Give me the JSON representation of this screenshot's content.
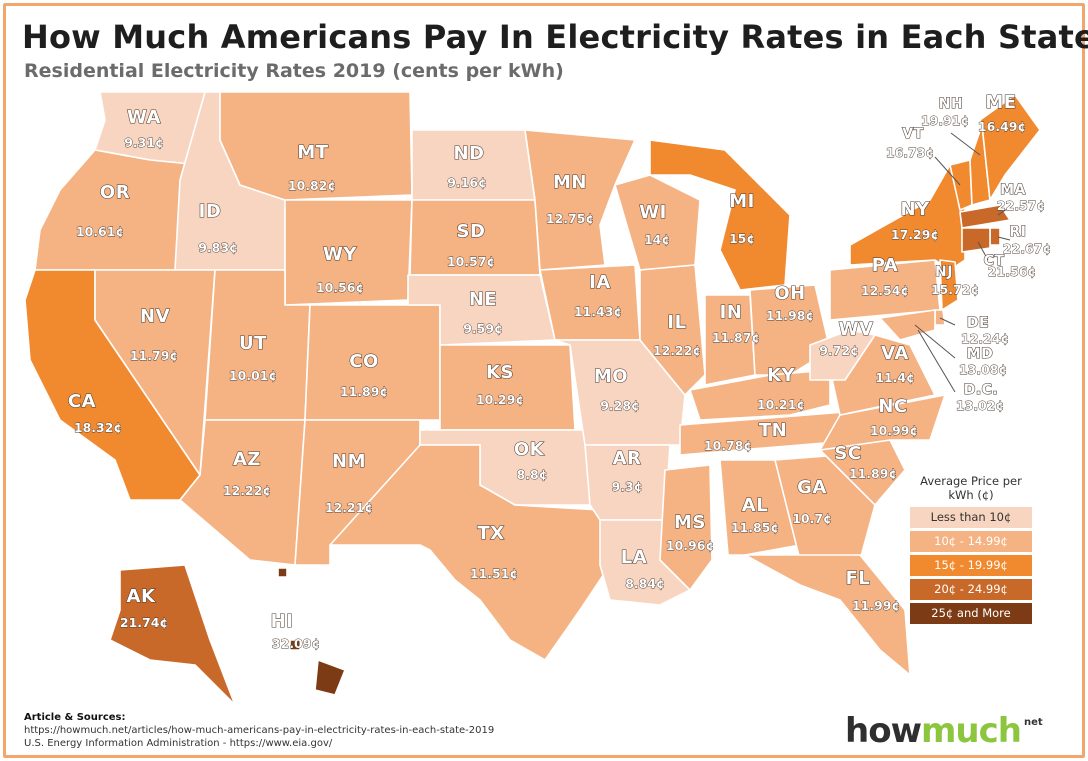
{
  "header": {
    "title": "How Much Americans Pay In Electricity Rates in Each State",
    "subtitle": "Residential Electricity Rates 2019 (cents per kWh)"
  },
  "legend": {
    "title": "Average Price per kWh (¢)",
    "items": [
      {
        "label": "Less than 10¢",
        "color": "#f8d5c0",
        "text_color": "#333333"
      },
      {
        "label": "10¢ - 14.99¢",
        "color": "#f5b283",
        "text_color": "#ffffff"
      },
      {
        "label": "15¢ - 19.99¢",
        "color": "#f1892f",
        "text_color": "#ffffff"
      },
      {
        "label": "20¢ - 24.99¢",
        "color": "#c8692a",
        "text_color": "#ffffff"
      },
      {
        "label": "25¢ and More",
        "color": "#7c3b14",
        "text_color": "#ffffff"
      }
    ]
  },
  "colors": {
    "border": "#f3a66c",
    "state_stroke": "#ffffff"
  },
  "states": [
    {
      "abbr": "WA",
      "value": "9.31¢"
    },
    {
      "abbr": "OR",
      "value": "10.61¢"
    },
    {
      "abbr": "CA",
      "value": "18.32¢"
    },
    {
      "abbr": "ID",
      "value": "9.83¢"
    },
    {
      "abbr": "NV",
      "value": "11.79¢"
    },
    {
      "abbr": "MT",
      "value": "10.82¢"
    },
    {
      "abbr": "WY",
      "value": "10.56¢"
    },
    {
      "abbr": "UT",
      "value": "10.01¢"
    },
    {
      "abbr": "AZ",
      "value": "12.22¢"
    },
    {
      "abbr": "CO",
      "value": "11.89¢"
    },
    {
      "abbr": "NM",
      "value": "12.21¢"
    },
    {
      "abbr": "ND",
      "value": "9.16¢"
    },
    {
      "abbr": "SD",
      "value": "10.57¢"
    },
    {
      "abbr": "NE",
      "value": "9.59¢"
    },
    {
      "abbr": "KS",
      "value": "10.29¢"
    },
    {
      "abbr": "OK",
      "value": "8.8¢"
    },
    {
      "abbr": "TX",
      "value": "11.51¢"
    },
    {
      "abbr": "MN",
      "value": "12.75¢"
    },
    {
      "abbr": "IA",
      "value": "11.43¢"
    },
    {
      "abbr": "MO",
      "value": "9.28¢"
    },
    {
      "abbr": "AR",
      "value": "9.3¢"
    },
    {
      "abbr": "LA",
      "value": "8.84¢"
    },
    {
      "abbr": "WI",
      "value": "14¢"
    },
    {
      "abbr": "IL",
      "value": "12.22¢"
    },
    {
      "abbr": "MI",
      "value": "15¢"
    },
    {
      "abbr": "IN",
      "value": "11.87¢"
    },
    {
      "abbr": "OH",
      "value": "11.98¢"
    },
    {
      "abbr": "KY",
      "value": "10.21¢"
    },
    {
      "abbr": "TN",
      "value": "10.78¢"
    },
    {
      "abbr": "MS",
      "value": "10.96¢"
    },
    {
      "abbr": "AL",
      "value": "11.85¢"
    },
    {
      "abbr": "GA",
      "value": "10.7¢"
    },
    {
      "abbr": "FL",
      "value": "11.99¢"
    },
    {
      "abbr": "SC",
      "value": "11.89¢"
    },
    {
      "abbr": "NC",
      "value": "10.99¢"
    },
    {
      "abbr": "VA",
      "value": "11.4¢"
    },
    {
      "abbr": "WV",
      "value": "9.72¢"
    },
    {
      "abbr": "PA",
      "value": "12.54¢"
    },
    {
      "abbr": "NY",
      "value": "17.29¢"
    },
    {
      "abbr": "VT",
      "value": "16.73¢"
    },
    {
      "abbr": "NH",
      "value": "19.91¢"
    },
    {
      "abbr": "ME",
      "value": "16.49¢"
    },
    {
      "abbr": "MA",
      "value": "22.57¢"
    },
    {
      "abbr": "RI",
      "value": "22.67¢"
    },
    {
      "abbr": "CT",
      "value": "21.56¢"
    },
    {
      "abbr": "NJ",
      "value": "15.72¢"
    },
    {
      "abbr": "DE",
      "value": "12.24¢"
    },
    {
      "abbr": "MD",
      "value": "13.08¢"
    },
    {
      "abbr": "D.C.",
      "value": "13.02¢"
    },
    {
      "abbr": "AK",
      "value": "21.74¢"
    },
    {
      "abbr": "HI",
      "value": "32.09¢"
    }
  ],
  "sources": {
    "heading": "Article & Sources:",
    "line1": "https://howmuch.net/articles/how-much-americans-pay-in-electricity-rates-in-each-state-2019",
    "line2": "U.S. Energy Information Administration - https://www.eia.gov/"
  },
  "logo": {
    "part1": "how",
    "part2": "much",
    "suffix": "net"
  }
}
